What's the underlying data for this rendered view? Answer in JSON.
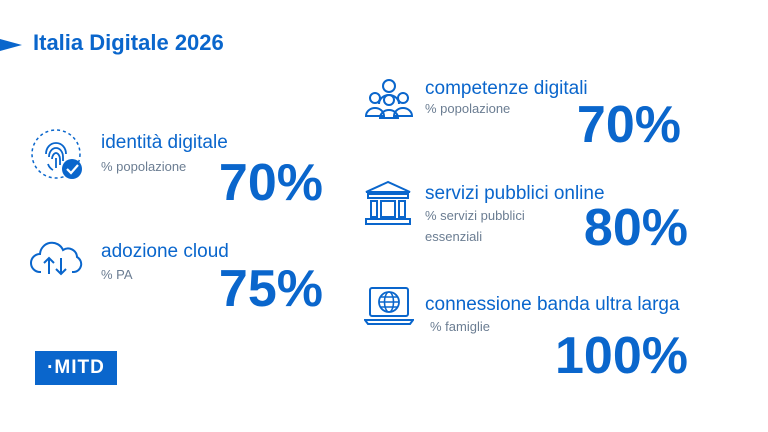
{
  "header": {
    "title": "Italia Digitale 2026"
  },
  "metrics": {
    "identita": {
      "label": "identità digitale",
      "sub": "% popolazione",
      "value": "70%",
      "icon": "fingerprint-check-icon"
    },
    "cloud": {
      "label": "adozione cloud",
      "sub": "% PA",
      "value": "75%",
      "icon": "cloud-transfer-icon"
    },
    "competenze": {
      "label": "competenze digitali",
      "sub": "% popolazione",
      "value": "70%",
      "icon": "people-group-icon"
    },
    "servizi": {
      "label": "servizi pubblici online",
      "sub1": "% servizi pubblici",
      "sub2": "essenziali",
      "value": "80%",
      "icon": "public-building-icon"
    },
    "banda": {
      "label": "connessione banda ultra larga",
      "sub": "% famiglie",
      "value": "100%",
      "icon": "laptop-globe-icon"
    }
  },
  "footer": {
    "logo": "·MITD"
  },
  "colors": {
    "accent": "#0a66cc",
    "muted": "#6b7d92"
  }
}
